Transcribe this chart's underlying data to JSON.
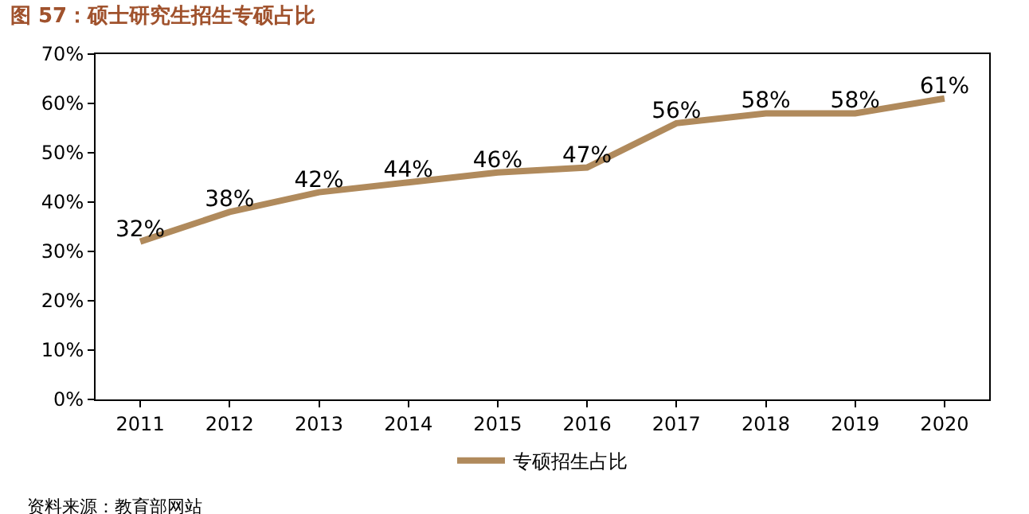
{
  "chart_data": {
    "type": "line",
    "title": "图 57：硕士研究生招生专硕占比",
    "categories": [
      "2011",
      "2012",
      "2013",
      "2014",
      "2015",
      "2016",
      "2017",
      "2018",
      "2019",
      "2020"
    ],
    "series": [
      {
        "name": "专硕招生占比",
        "color": "#b08a5c",
        "values": [
          32,
          38,
          42,
          44,
          46,
          47,
          56,
          58,
          58,
          61
        ],
        "value_labels": [
          "32%",
          "38%",
          "42%",
          "44%",
          "46%",
          "47%",
          "56%",
          "58%",
          "58%",
          "61%"
        ]
      }
    ],
    "ylim": [
      0,
      70
    ],
    "yticks": [
      {
        "value": 0,
        "label": "0%"
      },
      {
        "value": 10,
        "label": "10%"
      },
      {
        "value": 20,
        "label": "20%"
      },
      {
        "value": 30,
        "label": "30%"
      },
      {
        "value": 40,
        "label": "40%"
      },
      {
        "value": 50,
        "label": "50%"
      },
      {
        "value": 60,
        "label": "60%"
      },
      {
        "value": 70,
        "label": "70%"
      }
    ],
    "legend": "bottom",
    "marker": "none",
    "line_style": "solid",
    "annotations": [
      "资料来源：教育部网站"
    ]
  }
}
